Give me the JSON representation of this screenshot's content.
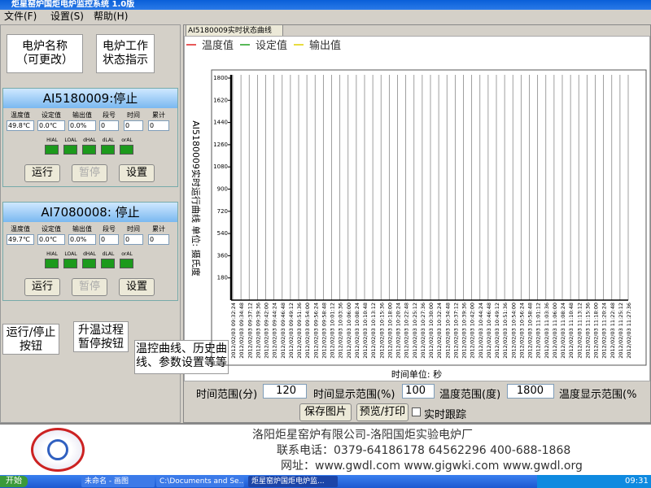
{
  "window": {
    "title": "炬星窑炉国炬电炉监控系统 1.0版"
  },
  "menu": [
    "文件(F)",
    "设置(S)",
    "帮助(H)"
  ],
  "callouts": [
    {
      "lines": [
        "电炉名称",
        "（可更改）"
      ]
    },
    {
      "lines": [
        "电炉工作",
        "状态指示"
      ]
    },
    {
      "lines": [
        "运行/停止",
        "按钮"
      ]
    },
    {
      "lines": [
        "升温过程",
        "暂停按钮"
      ]
    },
    {
      "lines": [
        "温控曲线、历史曲",
        "线、参数设置等等"
      ]
    }
  ],
  "panels": [
    {
      "title": "AI5180009:停止",
      "fields": [
        {
          "label": "温度值",
          "value": "49.8℃"
        },
        {
          "label": "设定值",
          "value": "0.0℃"
        },
        {
          "label": "输出值",
          "value": "0.0%"
        },
        {
          "label": "段号",
          "value": "0"
        },
        {
          "label": "时间",
          "value": "0"
        },
        {
          "label": "累计",
          "value": "0"
        }
      ],
      "indicators": [
        "HIAL",
        "LOAL",
        "dHAL",
        "dLAL",
        "orAL"
      ],
      "buttons": [
        "运行",
        "暂停",
        "设置"
      ]
    },
    {
      "title": "AI7080008: 停止",
      "fields": [
        {
          "label": "温度值",
          "value": "49.7℃"
        },
        {
          "label": "设定值",
          "value": "0.0℃"
        },
        {
          "label": "输出值",
          "value": "0.0%"
        },
        {
          "label": "段号",
          "value": "0"
        },
        {
          "label": "时间",
          "value": "0"
        },
        {
          "label": "累计",
          "value": "0"
        }
      ],
      "indicators": [
        "HIAL",
        "LOAL",
        "dHAL",
        "dLAL",
        "orAL"
      ],
      "buttons": [
        "运行",
        "暂停",
        "设置"
      ]
    }
  ],
  "tab": "AI5180009实时状态曲线",
  "chart_data": {
    "type": "line",
    "y_label": "AI5180009实时运行曲线 单位: 摄氏度",
    "x_label": "时间单位: 秒",
    "series": [
      {
        "name": "温度值",
        "color": "#e02020"
      },
      {
        "name": "设定值",
        "color": "#20a020"
      },
      {
        "name": "输出值",
        "color": "#e0d000"
      }
    ],
    "categories": [
      "2012/02/03 09:32:24",
      "2012/02/03 09:34:48",
      "2012/02/03 09:37:12",
      "2012/02/03 09:39:36",
      "2012/02/03 09:42:00",
      "2012/02/03 09:44:24",
      "2012/02/03 09:46:48",
      "2012/02/03 09:49:12",
      "2012/02/03 09:51:36",
      "2012/02/03 09:54:00",
      "2012/02/03 09:56:24",
      "2012/02/03 09:58:48",
      "2012/02/03 10:01:12",
      "2012/02/03 10:03:36",
      "2012/02/03 10:06:00",
      "2012/02/03 10:08:24",
      "2012/02/03 10:10:48",
      "2012/02/03 10:13:12",
      "2012/02/03 10:15:36",
      "2012/02/03 10:18:00",
      "2012/02/03 10:20:24",
      "2012/02/03 10:22:48",
      "2012/02/03 10:25:12",
      "2012/02/03 10:27:36",
      "2012/02/03 10:30:00",
      "2012/02/03 10:32:24",
      "2012/02/03 10:34:48",
      "2012/02/03 10:37:12",
      "2012/02/03 10:39:36",
      "2012/02/03 10:42:00",
      "2012/02/03 10:44:24",
      "2012/02/03 10:46:48",
      "2012/02/03 10:49:12",
      "2012/02/03 10:51:36",
      "2012/02/03 10:54:00",
      "2012/02/03 10:56:24",
      "2012/02/03 10:58:48",
      "2012/02/03 11:01:12",
      "2012/02/03 11:03:36",
      "2012/02/03 11:06:00",
      "2012/02/03 11:08:24",
      "2012/02/03 11:10:48",
      "2012/02/03 11:13:12",
      "2012/02/03 11:15:36",
      "2012/02/03 11:18:00",
      "2012/02/03 11:20:24",
      "2012/02/03 11:22:48",
      "2012/02/03 11:25:12",
      "2012/02/03 11:27:36"
    ],
    "ylim": [
      0,
      1800
    ],
    "yticks": [
      180,
      360,
      540,
      720,
      900,
      1080,
      1260,
      1440,
      1620,
      1800
    ],
    "grid": true
  },
  "controls": {
    "time_range_label": "时间范围(分)",
    "time_range": "120",
    "time_display_label": "时间显示范围(%)",
    "time_display": "100",
    "temp_range_label": "温度范围(度)",
    "temp_range": "1800",
    "temp_display_label": "温度显示范围(%",
    "save": "保存图片",
    "preview": "预览/打印",
    "realtime": "实时跟踪"
  },
  "footer": {
    "lines": [
      "洛阳炬星窑炉有限公司-洛阳国炬实验电炉厂",
      "联系电话：0379-64186178 64562296  400-688-1868",
      "网址：www.gwdl.com  www.gigwki.com  www.gwdl.org"
    ]
  },
  "taskbar": {
    "start": "开始",
    "items": [
      "未命名 - 画图",
      "C:\\Documents and Se...",
      "炬星窑炉国炬电炉监..."
    ],
    "clock": "09:31"
  }
}
